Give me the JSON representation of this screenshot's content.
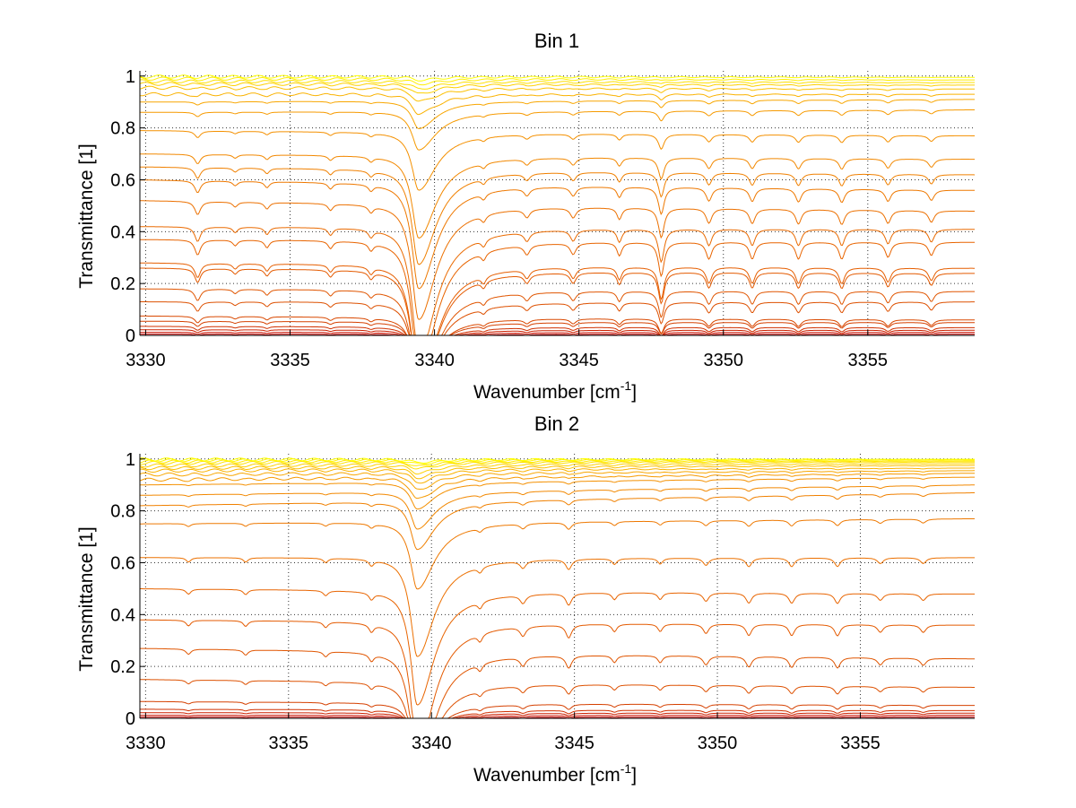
{
  "chart_data": [
    {
      "type": "line",
      "title": "Bin 1",
      "xlabel": "Wavenumber [cm",
      "xlabel_sup": "-1",
      "xlabel_tail": "]",
      "ylabel": "Transmittance [1]",
      "xlim": [
        3329.8,
        3358.7
      ],
      "ylim": [
        0,
        1.02
      ],
      "xticks": [
        3330,
        3335,
        3340,
        3345,
        3350,
        3355
      ],
      "yticks": [
        0,
        0.2,
        0.4,
        0.6,
        0.8,
        1
      ],
      "ytick_labels": [
        "0",
        "0.2",
        "0.4",
        "0.6",
        "0.8",
        "1"
      ],
      "grid": true,
      "legend": "none",
      "baselines": [
        0.005,
        0.012,
        0.022,
        0.035,
        0.055,
        0.075,
        0.13,
        0.18,
        0.26,
        0.28,
        0.37,
        0.42,
        0.52,
        0.6,
        0.65,
        0.7,
        0.79,
        0.86,
        0.9,
        0.93,
        0.955,
        0.97,
        0.98,
        0.99,
        0.998
      ],
      "baseline_ends": [
        0.005,
        0.012,
        0.02,
        0.03,
        0.05,
        0.06,
        0.13,
        0.17,
        0.24,
        0.26,
        0.36,
        0.41,
        0.48,
        0.56,
        0.62,
        0.68,
        0.77,
        0.87,
        0.91,
        0.93,
        0.95,
        0.965,
        0.975,
        0.985,
        0.995
      ],
      "lines": [
        {
          "center": 3331.8,
          "width": 0.12,
          "strength": 0.04
        },
        {
          "center": 3333.1,
          "width": 0.1,
          "strength": 0.015
        },
        {
          "center": 3334.2,
          "width": 0.1,
          "strength": 0.02
        },
        {
          "center": 3336.4,
          "width": 0.1,
          "strength": 0.02
        },
        {
          "center": 3337.8,
          "width": 0.1,
          "strength": 0.02
        },
        {
          "center": 3339.45,
          "width": 0.28,
          "strength": 0.35
        },
        {
          "center": 3341.7,
          "width": 0.1,
          "strength": 0.02
        },
        {
          "center": 3343.2,
          "width": 0.12,
          "strength": 0.025
        },
        {
          "center": 3344.8,
          "width": 0.12,
          "strength": 0.03
        },
        {
          "center": 3346.4,
          "width": 0.1,
          "strength": 0.035
        },
        {
          "center": 3347.85,
          "width": 0.12,
          "strength": 0.09
        },
        {
          "center": 3349.5,
          "width": 0.12,
          "strength": 0.045
        },
        {
          "center": 3351.0,
          "width": 0.12,
          "strength": 0.045
        },
        {
          "center": 3352.6,
          "width": 0.12,
          "strength": 0.045
        },
        {
          "center": 3354.1,
          "width": 0.12,
          "strength": 0.045
        },
        {
          "center": 3355.7,
          "width": 0.12,
          "strength": 0.04
        },
        {
          "center": 3357.2,
          "width": 0.12,
          "strength": 0.035
        }
      ],
      "colors": [
        "#c00000",
        "#c81000",
        "#cc2000",
        "#d03000",
        "#d54000",
        "#d94800",
        "#dd5000",
        "#e05500",
        "#e45a00",
        "#e65e00",
        "#e86400",
        "#ea6a00",
        "#ec7000",
        "#ee7800",
        "#f08000",
        "#f28800",
        "#f49000",
        "#f69a00",
        "#f8a600",
        "#fab200",
        "#fcc000",
        "#fdd000",
        "#fee000",
        "#ffee00",
        "#ffff00"
      ]
    },
    {
      "type": "line",
      "title": "Bin 2",
      "xlabel": "Wavenumber [cm",
      "xlabel_sup": "-1",
      "xlabel_tail": "]",
      "ylabel": "Transmittance [1]",
      "xlim": [
        3329.8,
        3359.0
      ],
      "ylim": [
        0,
        1.02
      ],
      "xticks": [
        3330,
        3335,
        3340,
        3345,
        3350,
        3355
      ],
      "yticks": [
        0,
        0.2,
        0.4,
        0.6,
        0.8,
        1
      ],
      "ytick_labels": [
        "0",
        "0.2",
        "0.4",
        "0.6",
        "0.8",
        "1"
      ],
      "grid": true,
      "legend": "none",
      "baselines": [
        0.005,
        0.012,
        0.022,
        0.035,
        0.065,
        0.15,
        0.27,
        0.38,
        0.5,
        0.62,
        0.75,
        0.82,
        0.86,
        0.9,
        0.92,
        0.94,
        0.955,
        0.965,
        0.975,
        0.985,
        0.99,
        0.995,
        0.998
      ],
      "baseline_ends": [
        0.005,
        0.012,
        0.02,
        0.03,
        0.05,
        0.12,
        0.23,
        0.36,
        0.48,
        0.62,
        0.77,
        0.87,
        0.9,
        0.93,
        0.945,
        0.955,
        0.965,
        0.975,
        0.982,
        0.988,
        0.992,
        0.996,
        0.999
      ],
      "lines": [
        {
          "center": 3331.5,
          "width": 0.1,
          "strength": 0.015
        },
        {
          "center": 3333.5,
          "width": 0.1,
          "strength": 0.015
        },
        {
          "center": 3336.3,
          "width": 0.1,
          "strength": 0.015
        },
        {
          "center": 3337.9,
          "width": 0.1,
          "strength": 0.02
        },
        {
          "center": 3339.5,
          "width": 0.28,
          "strength": 0.34
        },
        {
          "center": 3341.7,
          "width": 0.1,
          "strength": 0.02
        },
        {
          "center": 3343.2,
          "width": 0.12,
          "strength": 0.025
        },
        {
          "center": 3344.8,
          "width": 0.12,
          "strength": 0.035
        },
        {
          "center": 3346.4,
          "width": 0.1,
          "strength": 0.02
        },
        {
          "center": 3348.0,
          "width": 0.1,
          "strength": 0.02
        },
        {
          "center": 3349.6,
          "width": 0.12,
          "strength": 0.025
        },
        {
          "center": 3351.1,
          "width": 0.12,
          "strength": 0.03
        },
        {
          "center": 3352.6,
          "width": 0.12,
          "strength": 0.03
        },
        {
          "center": 3354.2,
          "width": 0.12,
          "strength": 0.03
        },
        {
          "center": 3355.7,
          "width": 0.12,
          "strength": 0.02
        },
        {
          "center": 3357.2,
          "width": 0.12,
          "strength": 0.02
        }
      ],
      "colors": [
        "#c00000",
        "#c81000",
        "#cc2000",
        "#d03000",
        "#d54000",
        "#dd5000",
        "#e05500",
        "#e45a00",
        "#e86400",
        "#ec7000",
        "#ee7800",
        "#f08000",
        "#f28800",
        "#f49000",
        "#f69a00",
        "#f8a600",
        "#fab200",
        "#fcc000",
        "#fdd000",
        "#fee000",
        "#ffe800",
        "#fff400",
        "#ffff00"
      ]
    }
  ]
}
